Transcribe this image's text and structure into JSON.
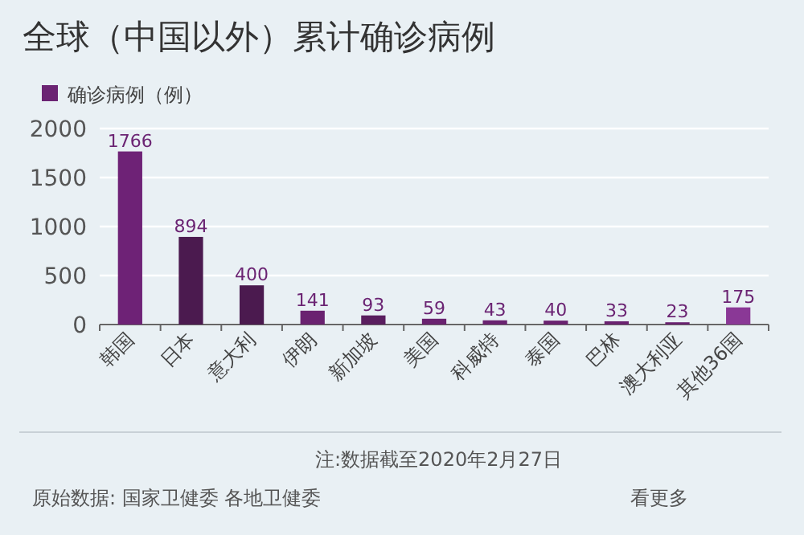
{
  "chart_data": {
    "type": "bar",
    "title": "全球（中国以外）累计确诊病例",
    "categories": [
      "韩国",
      "日本",
      "意大利",
      "伊朗",
      "新加坡",
      "美国",
      "科威特",
      "泰国",
      "巴林",
      "澳大利亚",
      "其他36国"
    ],
    "series": [
      {
        "name": "确诊病例（例）",
        "color": "#6b2473",
        "colors": [
          "#6e2276",
          "#4b1a4f",
          "#4b1a4f",
          "#6a2270",
          "#5a1e5f",
          "#6a2270",
          "#6a2270",
          "#6a2270",
          "#6a2270",
          "#6a2270",
          "#8a3896"
        ],
        "values": [
          1766,
          894,
          400,
          141,
          93,
          59,
          43,
          40,
          33,
          23,
          175
        ]
      }
    ],
    "ylim": [
      0,
      2000
    ],
    "yticks": [
      0,
      500,
      1000,
      1500,
      2000
    ],
    "grid": "y",
    "legend": "top left",
    "data_labels": true,
    "annotations": [
      "注:数据截至2020年2月27日",
      "原始数据: 国家卫健委 各地卫健委",
      "看更多"
    ]
  }
}
